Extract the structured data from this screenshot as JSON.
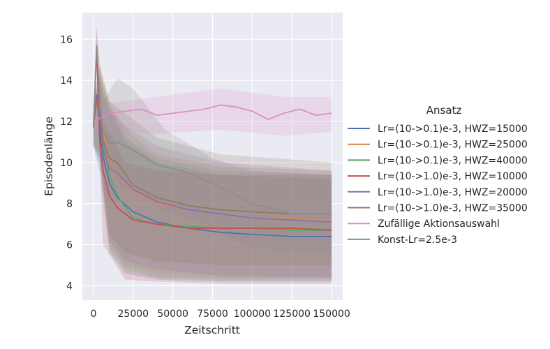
{
  "chart_data": {
    "type": "line",
    "xlabel": "Zeitschritt",
    "ylabel": "Episodenlänge",
    "xlim": [
      -7000,
      157000
    ],
    "ylim": [
      3.3,
      17.3
    ],
    "xticks": [
      0,
      25000,
      50000,
      75000,
      100000,
      125000,
      150000
    ],
    "yticks": [
      4,
      6,
      8,
      10,
      12,
      14,
      16
    ],
    "grid": true,
    "legend": {
      "title": "Ansatz",
      "placement": "right, outside plot"
    },
    "series": [
      {
        "name": "Lr=(10->0.1)e-3, HWZ=15000",
        "color": "#4c72b0",
        "points": [
          [
            0,
            11.8
          ],
          [
            2000,
            13.3
          ],
          [
            4000,
            11.6
          ],
          [
            6000,
            10.3
          ],
          [
            10000,
            9.0
          ],
          [
            15000,
            8.3
          ],
          [
            25000,
            7.6
          ],
          [
            40000,
            7.1
          ],
          [
            60000,
            6.8
          ],
          [
            80000,
            6.6
          ],
          [
            100000,
            6.5
          ],
          [
            125000,
            6.4
          ],
          [
            150000,
            6.4
          ]
        ],
        "band": [
          [
            0,
            10.8,
            12.8
          ],
          [
            4000,
            9.5,
            13.8
          ],
          [
            10000,
            5.6,
            12.6
          ],
          [
            20000,
            4.6,
            11.0
          ],
          [
            40000,
            4.3,
            10.0
          ],
          [
            80000,
            4.2,
            9.4
          ],
          [
            150000,
            4.2,
            9.2
          ]
        ]
      },
      {
        "name": "Lr=(10->0.1)e-3, HWZ=25000",
        "color": "#dd8452",
        "points": [
          [
            0,
            12.0
          ],
          [
            2000,
            13.1
          ],
          [
            4000,
            12.6
          ],
          [
            6000,
            11.4
          ],
          [
            10000,
            10.1
          ],
          [
            15000,
            9.3
          ],
          [
            25000,
            8.6
          ],
          [
            40000,
            8.0
          ],
          [
            60000,
            7.7
          ],
          [
            80000,
            7.5
          ],
          [
            100000,
            7.3
          ],
          [
            125000,
            7.3
          ],
          [
            150000,
            7.2
          ]
        ],
        "band": [
          [
            0,
            11.0,
            13.0
          ],
          [
            4000,
            10.4,
            14.8
          ],
          [
            10000,
            6.0,
            13.0
          ],
          [
            20000,
            5.0,
            11.6
          ],
          [
            40000,
            4.6,
            10.4
          ],
          [
            80000,
            4.4,
            9.8
          ],
          [
            150000,
            4.4,
            9.6
          ]
        ]
      },
      {
        "name": "Lr=(10->0.1)e-3, HWZ=40000",
        "color": "#55a868",
        "points": [
          [
            0,
            11.9
          ],
          [
            2000,
            13.0
          ],
          [
            4000,
            12.3
          ],
          [
            6000,
            11.0
          ],
          [
            10000,
            9.4
          ],
          [
            15000,
            8.4
          ],
          [
            25000,
            7.3
          ],
          [
            40000,
            7.0
          ],
          [
            60000,
            6.9
          ],
          [
            80000,
            6.8
          ],
          [
            100000,
            6.8
          ],
          [
            125000,
            6.7
          ],
          [
            150000,
            6.7
          ]
        ],
        "band": [
          [
            0,
            10.9,
            12.9
          ],
          [
            4000,
            10.2,
            14.4
          ],
          [
            10000,
            5.8,
            12.8
          ],
          [
            20000,
            4.8,
            11.2
          ],
          [
            40000,
            4.4,
            10.2
          ],
          [
            80000,
            4.3,
            9.6
          ],
          [
            150000,
            4.3,
            9.4
          ]
        ]
      },
      {
        "name": "Lr=(10->1.0)e-3, HWZ=10000",
        "color": "#c44e52",
        "points": [
          [
            0,
            11.7
          ],
          [
            2000,
            15.5
          ],
          [
            4000,
            11.0
          ],
          [
            6000,
            9.6
          ],
          [
            10000,
            8.4
          ],
          [
            15000,
            7.8
          ],
          [
            25000,
            7.2
          ],
          [
            40000,
            7.0
          ],
          [
            60000,
            6.8
          ],
          [
            80000,
            6.8
          ],
          [
            100000,
            6.8
          ],
          [
            125000,
            6.8
          ],
          [
            150000,
            6.7
          ]
        ],
        "band": [
          [
            0,
            10.7,
            12.7
          ],
          [
            2000,
            14.5,
            16.6
          ],
          [
            6000,
            6.0,
            12.0
          ],
          [
            20000,
            4.3,
            10.0
          ],
          [
            40000,
            4.2,
            9.6
          ],
          [
            80000,
            4.1,
            9.4
          ],
          [
            150000,
            4.1,
            9.4
          ]
        ]
      },
      {
        "name": "Lr=(10->1.0)e-3, HWZ=20000",
        "color": "#8172b3",
        "points": [
          [
            0,
            11.8
          ],
          [
            2000,
            13.1
          ],
          [
            4000,
            12.0
          ],
          [
            6000,
            10.6
          ],
          [
            10000,
            9.7
          ],
          [
            15000,
            9.5
          ],
          [
            25000,
            8.7
          ],
          [
            40000,
            8.1
          ],
          [
            60000,
            7.7
          ],
          [
            80000,
            7.5
          ],
          [
            100000,
            7.3
          ],
          [
            125000,
            7.2
          ],
          [
            150000,
            7.1
          ]
        ],
        "band": [
          [
            0,
            10.8,
            12.8
          ],
          [
            4000,
            10.0,
            14.2
          ],
          [
            10000,
            6.2,
            12.6
          ],
          [
            20000,
            5.2,
            11.8
          ],
          [
            40000,
            4.8,
            10.8
          ],
          [
            80000,
            4.5,
            10.0
          ],
          [
            150000,
            4.4,
            9.6
          ]
        ]
      },
      {
        "name": "Lr=(10->1.0)e-3, HWZ=35000",
        "color": "#937860",
        "points": [
          [
            0,
            11.8
          ],
          [
            2000,
            13.0
          ],
          [
            4000,
            12.4
          ],
          [
            6000,
            11.1
          ],
          [
            10000,
            10.2
          ],
          [
            15000,
            10.0
          ],
          [
            25000,
            8.9
          ],
          [
            40000,
            8.3
          ],
          [
            60000,
            7.9
          ],
          [
            80000,
            7.7
          ],
          [
            100000,
            7.6
          ],
          [
            125000,
            7.5
          ],
          [
            150000,
            7.5
          ]
        ],
        "band": [
          [
            0,
            10.8,
            12.8
          ],
          [
            4000,
            10.3,
            14.6
          ],
          [
            10000,
            6.5,
            13.0
          ],
          [
            20000,
            5.6,
            12.4
          ],
          [
            40000,
            5.2,
            11.2
          ],
          [
            80000,
            5.0,
            10.4
          ],
          [
            150000,
            5.0,
            10.0
          ]
        ]
      },
      {
        "name": "Zufällige Aktionsauswahl",
        "color": "#da8bc3",
        "points": [
          [
            0,
            12.0
          ],
          [
            5000,
            12.2
          ],
          [
            10000,
            12.4
          ],
          [
            20000,
            12.5
          ],
          [
            30000,
            12.6
          ],
          [
            40000,
            12.3
          ],
          [
            50000,
            12.4
          ],
          [
            60000,
            12.5
          ],
          [
            70000,
            12.6
          ],
          [
            80000,
            12.8
          ],
          [
            90000,
            12.7
          ],
          [
            100000,
            12.5
          ],
          [
            110000,
            12.1
          ],
          [
            120000,
            12.4
          ],
          [
            130000,
            12.6
          ],
          [
            140000,
            12.3
          ],
          [
            150000,
            12.4
          ]
        ],
        "band": [
          [
            0,
            11.6,
            12.8
          ],
          [
            40000,
            11.4,
            13.2
          ],
          [
            80000,
            11.6,
            13.6
          ],
          [
            120000,
            11.3,
            13.2
          ],
          [
            150000,
            11.5,
            13.2
          ]
        ]
      },
      {
        "name": "Konst-Lr=2.5e-3",
        "color": "#8c8c8c",
        "points": [
          [
            0,
            11.7
          ],
          [
            2000,
            15.7
          ],
          [
            4000,
            12.8
          ],
          [
            6000,
            11.6
          ],
          [
            10000,
            10.9
          ],
          [
            15000,
            11.0
          ],
          [
            25000,
            10.6
          ],
          [
            40000,
            9.9
          ],
          [
            60000,
            9.5
          ],
          [
            80000,
            8.8
          ],
          [
            100000,
            8.0
          ],
          [
            125000,
            7.5
          ],
          [
            150000,
            7.5
          ]
        ],
        "band": [
          [
            0,
            10.7,
            12.7
          ],
          [
            2000,
            14.8,
            16.6
          ],
          [
            6000,
            10.6,
            13.0
          ],
          [
            15000,
            9.0,
            14.1
          ],
          [
            25000,
            8.6,
            13.6
          ],
          [
            45000,
            7.6,
            11.6
          ],
          [
            75000,
            6.8,
            10.2
          ],
          [
            100000,
            5.8,
            9.6
          ],
          [
            150000,
            5.6,
            9.4
          ]
        ]
      }
    ]
  }
}
